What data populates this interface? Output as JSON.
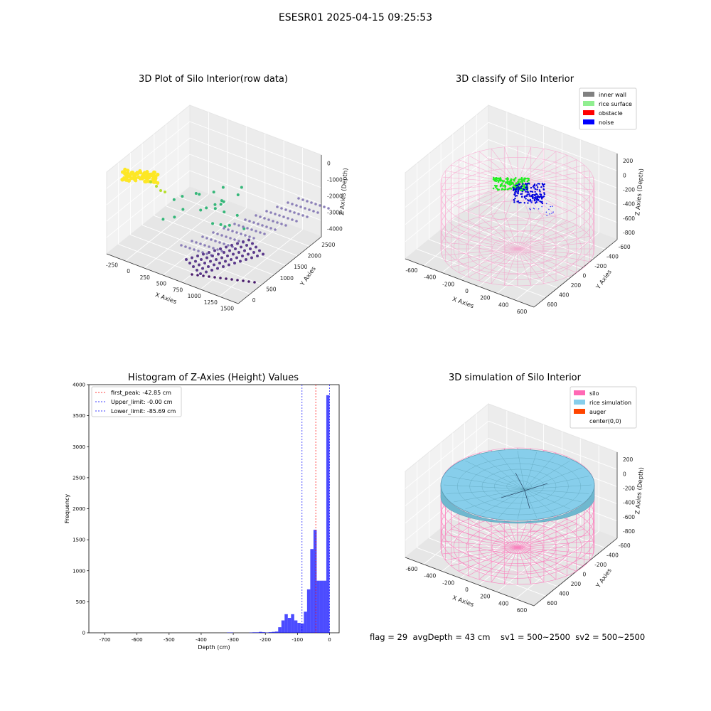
{
  "suptitle": "ESESR01 2025-04-15 09:25:53",
  "panels": {
    "raw": {
      "title": "3D Plot of Silo Interior(row data)",
      "x_label": "X Axies",
      "y_label": "Y Axies",
      "z_label": "Z Axies (Depth)",
      "x_ticks": [
        "-250",
        "0",
        "250",
        "500",
        "750",
        "1000",
        "1250",
        "1500"
      ],
      "y_ticks": [
        "0",
        "500",
        "1000",
        "1500",
        "2000",
        "2500"
      ],
      "z_ticks": [
        "0",
        "-1000",
        "-2000",
        "-3000",
        "-4000"
      ]
    },
    "classify": {
      "title": "3D classify of Silo Interior",
      "x_label": "X Axies",
      "y_label": "Y Axies",
      "z_label": "Z Axies (Depth)",
      "x_ticks": [
        "-600",
        "-400",
        "-200",
        "0",
        "200",
        "400",
        "600"
      ],
      "y_ticks": [
        "600",
        "400",
        "200",
        "0",
        "-200",
        "-400",
        "-600"
      ],
      "z_ticks": [
        "200",
        "0",
        "-200",
        "-400",
        "-600",
        "-800"
      ],
      "legend": [
        {
          "label": "inner wall",
          "color": "#808080"
        },
        {
          "label": "rice surface",
          "color": "#90ee90"
        },
        {
          "label": "obstacle",
          "color": "#ff0000"
        },
        {
          "label": "noise",
          "color": "#0000ff"
        }
      ]
    },
    "simulation": {
      "title": "3D simulation of Silo Interior",
      "x_label": "X Axies",
      "y_label": "Y Axies",
      "z_label": "Z Axies (Depth)",
      "x_ticks": [
        "-600",
        "-400",
        "-200",
        "0",
        "200",
        "400",
        "600"
      ],
      "y_ticks": [
        "600",
        "400",
        "200",
        "0",
        "-200",
        "-400",
        "-600"
      ],
      "z_ticks": [
        "200",
        "0",
        "-200",
        "-400",
        "-600",
        "-800"
      ],
      "legend": [
        {
          "label": "silo",
          "color": "#ff69b4"
        },
        {
          "label": "rice simulation",
          "color": "#87ceeb"
        },
        {
          "label": "auger",
          "color": "#ff4500"
        },
        {
          "label": "center(0,0)",
          "color": ""
        }
      ]
    }
  },
  "chart_data": [
    {
      "type": "bar",
      "title": "Histogram of Z-Axies (Height) Values",
      "xlabel": "Depth (cm)",
      "ylabel": "Frequency",
      "xlim": [
        -750,
        30
      ],
      "ylim": [
        0,
        4000
      ],
      "x_ticks": [
        -700,
        -600,
        -500,
        -400,
        -300,
        -200,
        -100,
        0
      ],
      "y_ticks": [
        0,
        500,
        1000,
        1500,
        2000,
        2500,
        3000,
        3500,
        4000
      ],
      "bar_color": "#0000ff",
      "bin_width": 10,
      "bins": [
        {
          "x": -320,
          "value": 5
        },
        {
          "x": -310,
          "value": 5
        },
        {
          "x": -250,
          "value": 5
        },
        {
          "x": -240,
          "value": 8
        },
        {
          "x": -230,
          "value": 8
        },
        {
          "x": -220,
          "value": 15
        },
        {
          "x": -210,
          "value": 10
        },
        {
          "x": -200,
          "value": 5
        },
        {
          "x": -190,
          "value": 10
        },
        {
          "x": -180,
          "value": 15
        },
        {
          "x": -170,
          "value": 20
        },
        {
          "x": -160,
          "value": 90
        },
        {
          "x": -150,
          "value": 200
        },
        {
          "x": -140,
          "value": 300
        },
        {
          "x": -130,
          "value": 240
        },
        {
          "x": -120,
          "value": 300
        },
        {
          "x": -110,
          "value": 200
        },
        {
          "x": -100,
          "value": 160
        },
        {
          "x": -90,
          "value": 150
        },
        {
          "x": -80,
          "value": 340
        },
        {
          "x": -70,
          "value": 700
        },
        {
          "x": -60,
          "value": 1350
        },
        {
          "x": -50,
          "value": 1660
        },
        {
          "x": -40,
          "value": 840
        },
        {
          "x": -30,
          "value": 840
        },
        {
          "x": -20,
          "value": 840
        },
        {
          "x": -10,
          "value": 3830
        }
      ],
      "legend_position": "upper left",
      "lines": [
        {
          "label": "first_peak: -42.85 cm",
          "x": -42.85,
          "color": "#ff0000"
        },
        {
          "label": "Upper_limit: -0.00 cm",
          "x": 0,
          "color": "#0000ff"
        },
        {
          "label": "Lower_limit: -85.69 cm",
          "x": -85.69,
          "color": "#0000ff"
        }
      ]
    }
  ],
  "bottom_info": "flag = 29  avgDepth = 43 cm    sv1 = 500~2500  sv2 = 500~2500"
}
